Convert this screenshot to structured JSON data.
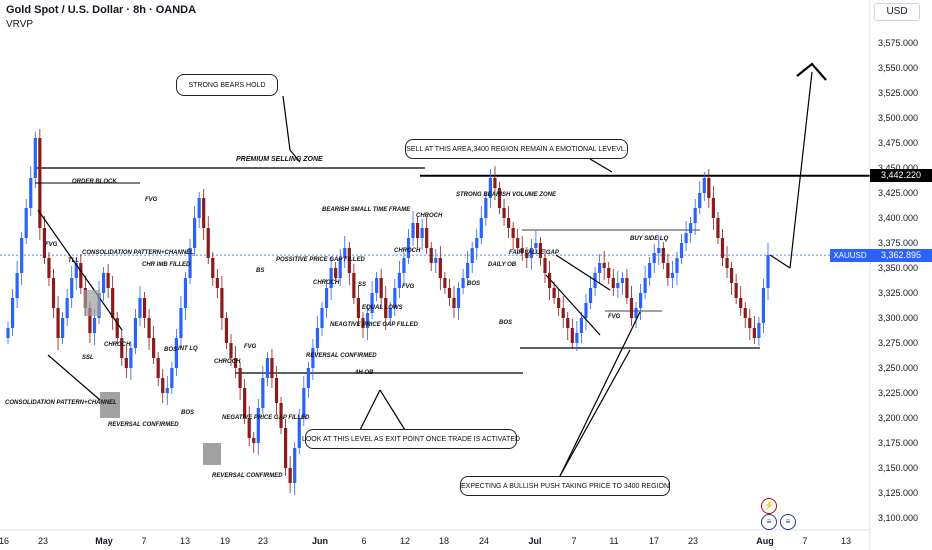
{
  "header": {
    "title": "Gold Spot / U.S. Dollar · 8h · OANDA",
    "indicator": "VRVP"
  },
  "currency_button": "USD",
  "price_axis": {
    "ticks": [
      "3,575.000",
      "3,550.000",
      "3,525.000",
      "3,500.000",
      "3,475.000",
      "3,450.000",
      "3,425.000",
      "3,400.000",
      "3,375.000",
      "3,350.000",
      "3,325.000",
      "3,300.000",
      "3,275.000",
      "3,250.000",
      "3,225.000",
      "3,200.000",
      "3,175.000",
      "3,150.000",
      "3,125.000",
      "3,100.000"
    ]
  },
  "price_tags": {
    "level": "3,442.220",
    "last": "3,362.895",
    "symbol": "XAUUSD"
  },
  "time_axis": {
    "labels": [
      "16",
      "23",
      "May",
      "7",
      "13",
      "19",
      "23",
      "Jun",
      "6",
      "12",
      "18",
      "24",
      "Jul",
      "7",
      "11",
      "17",
      "23",
      "Aug",
      "7",
      "13"
    ]
  },
  "callouts": {
    "strong_bears": "STRONG BEARS HOLD",
    "sell_area": "SELL AT THIS AREA,3400 REGION REMAIN A EMOTIONAL LEVEVL.",
    "exit_point": "LOOK AT THIS LEVEL AS EXIT POINT ONCE TRADE IS ACTIVATED",
    "bullish_push": "EXPECTING A BULLISH PUSH TAKING PRICE TO 3400 REGION"
  },
  "annotations": {
    "premium_zone": "PREMIUM SELLING ZONE",
    "order_block": "ORDER BLOCK",
    "fvg": "FVG",
    "tll": "TLL",
    "ssl": "SSL",
    "chroch": "CHROCH",
    "consolidation_channel_top": "CONSOLIDATION PATTERN+CHANNEL",
    "chr_imb_filled": "CHR IMB FILLED",
    "bos": "BOS",
    "int_lq": "INT LQ",
    "reversal_confirmed": "REVERSAL CONFIRMED",
    "consolidation_channel_left": "CONSOLIDATION PATTERN+CHANNEL",
    "negative_gap_filled_1": "NEGATIVE PRICE GAP FILLED",
    "bearish_small_tf": "BEARISH SMALL TIME FRAME",
    "possitive_gap": "POSSITIVE PRICE GAP FILLED",
    "bs": "BS",
    "negative_gap_filled_2": "NEAGTIVE PRICE GAP FILLED",
    "ss": "SS",
    "equal_lows": "EQUAL LOWS",
    "four_h_ob": "4H OB",
    "strong_bearish_volume": "STRONG BEARISH VOLUME ZONE",
    "fair_value_gap": "FAIR VALUE GAP",
    "daily_ob": "DAILY OB",
    "buy_side_lq": "BUY SIDE LQ"
  },
  "chart_data": {
    "type": "candlestick",
    "title": "Gold Spot / U.S. Dollar · 8h · OANDA",
    "x_labels": [
      "16",
      "23",
      "May",
      "7",
      "13",
      "19",
      "23",
      "Jun",
      "6",
      "12",
      "18",
      "24",
      "Jul",
      "7",
      "11",
      "17",
      "23",
      "Aug",
      "7",
      "13"
    ],
    "ylim": [
      3090,
      3600
    ],
    "grid": false,
    "horizontal_levels": [
      3450,
      3442.22,
      3388,
      3307,
      3270,
      3245
    ],
    "last_price": 3362.895,
    "level_price": 3442.22,
    "closes": [
      3290,
      3320,
      3345,
      3380,
      3410,
      3440,
      3480,
      3390,
      3360,
      3340,
      3310,
      3280,
      3300,
      3320,
      3340,
      3355,
      3330,
      3310,
      3285,
      3300,
      3325,
      3345,
      3330,
      3300,
      3280,
      3260,
      3250,
      3270,
      3300,
      3320,
      3300,
      3280,
      3260,
      3240,
      3225,
      3230,
      3250,
      3280,
      3310,
      3340,
      3370,
      3400,
      3420,
      3390,
      3360,
      3340,
      3330,
      3300,
      3275,
      3260,
      3250,
      3230,
      3200,
      3180,
      3175,
      3210,
      3240,
      3260,
      3240,
      3215,
      3190,
      3150,
      3135,
      3170,
      3200,
      3230,
      3250,
      3270,
      3290,
      3310,
      3330,
      3350,
      3340,
      3360,
      3370,
      3345,
      3320,
      3300,
      3290,
      3305,
      3325,
      3340,
      3320,
      3300,
      3310,
      3330,
      3345,
      3360,
      3380,
      3395,
      3380,
      3390,
      3370,
      3355,
      3360,
      3340,
      3330,
      3320,
      3310,
      3330,
      3340,
      3355,
      3370,
      3380,
      3400,
      3420,
      3440,
      3430,
      3410,
      3400,
      3390,
      3380,
      3370,
      3365,
      3360,
      3370,
      3375,
      3360,
      3345,
      3330,
      3320,
      3310,
      3300,
      3290,
      3275,
      3285,
      3300,
      3315,
      3330,
      3345,
      3355,
      3350,
      3340,
      3330,
      3335,
      3340,
      3320,
      3300,
      3310,
      3325,
      3340,
      3355,
      3365,
      3370,
      3355,
      3340,
      3345,
      3360,
      3375,
      3385,
      3395,
      3410,
      3425,
      3440,
      3420,
      3400,
      3380,
      3360,
      3350,
      3335,
      3320,
      3310,
      3300,
      3290,
      3280,
      3295,
      3330,
      3362.9
    ]
  }
}
